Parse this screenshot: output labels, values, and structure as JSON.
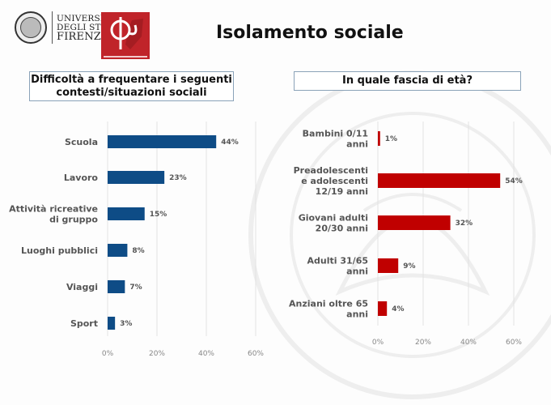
{
  "header": {
    "title": "Isolamento sociale",
    "logo_university": "UNIVERSITÀ DEGLI STUDI FIRENZE",
    "logo_university_lines": [
      "UNIVERSITÀ",
      "DEGLI STUDI",
      "FIRENZE"
    ]
  },
  "colors": {
    "left_bar": "#0e4c86",
    "right_bar": "#c00000",
    "grid": "#e3e3e3"
  },
  "chart_data": [
    {
      "type": "bar",
      "orientation": "horizontal",
      "title": "Difficoltà a frequentare i seguenti contesti/situazioni sociali",
      "title_lines": [
        "Difficoltà a frequentare i seguenti",
        "contesti/situazioni sociali"
      ],
      "categories": [
        "Scuola",
        "Lavoro",
        "Attività ricreative di gruppo",
        "Luoghi pubblici",
        "Viaggi",
        "Sport"
      ],
      "category_lines": [
        [
          "Scuola"
        ],
        [
          "Lavoro"
        ],
        [
          "Attività ricreative",
          "di gruppo"
        ],
        [
          "Luoghi pubblici"
        ],
        [
          "Viaggi"
        ],
        [
          "Sport"
        ]
      ],
      "values": [
        44,
        23,
        15,
        8,
        7,
        3
      ],
      "value_labels": [
        "44%",
        "23%",
        "15%",
        "8%",
        "7%",
        "3%"
      ],
      "xlim": [
        0,
        60
      ],
      "ticks": [
        "0%",
        "20%",
        "40%",
        "60%"
      ],
      "grid": true
    },
    {
      "type": "bar",
      "orientation": "horizontal",
      "title": "In quale fascia di età?",
      "categories": [
        "Bambini 0/11 anni",
        "Preadolescenti e adolescenti 12/19 anni",
        "Giovani adulti 20/30 anni",
        "Adulti 31/65 anni",
        "Anziani oltre 65 anni"
      ],
      "category_lines": [
        [
          "Bambini 0/11",
          "anni"
        ],
        [
          "Preadolescenti",
          "e adolescenti",
          "12/19 anni"
        ],
        [
          "Giovani adulti",
          "20/30 anni"
        ],
        [
          "Adulti 31/65",
          "anni"
        ],
        [
          "Anziani oltre 65",
          "anni"
        ]
      ],
      "values": [
        1,
        54,
        32,
        9,
        4
      ],
      "value_labels": [
        "1%",
        "54%",
        "32%",
        "9%",
        "4%"
      ],
      "xlim": [
        0,
        60
      ],
      "ticks": [
        "0%",
        "20%",
        "40%",
        "60%"
      ],
      "grid": true
    }
  ]
}
